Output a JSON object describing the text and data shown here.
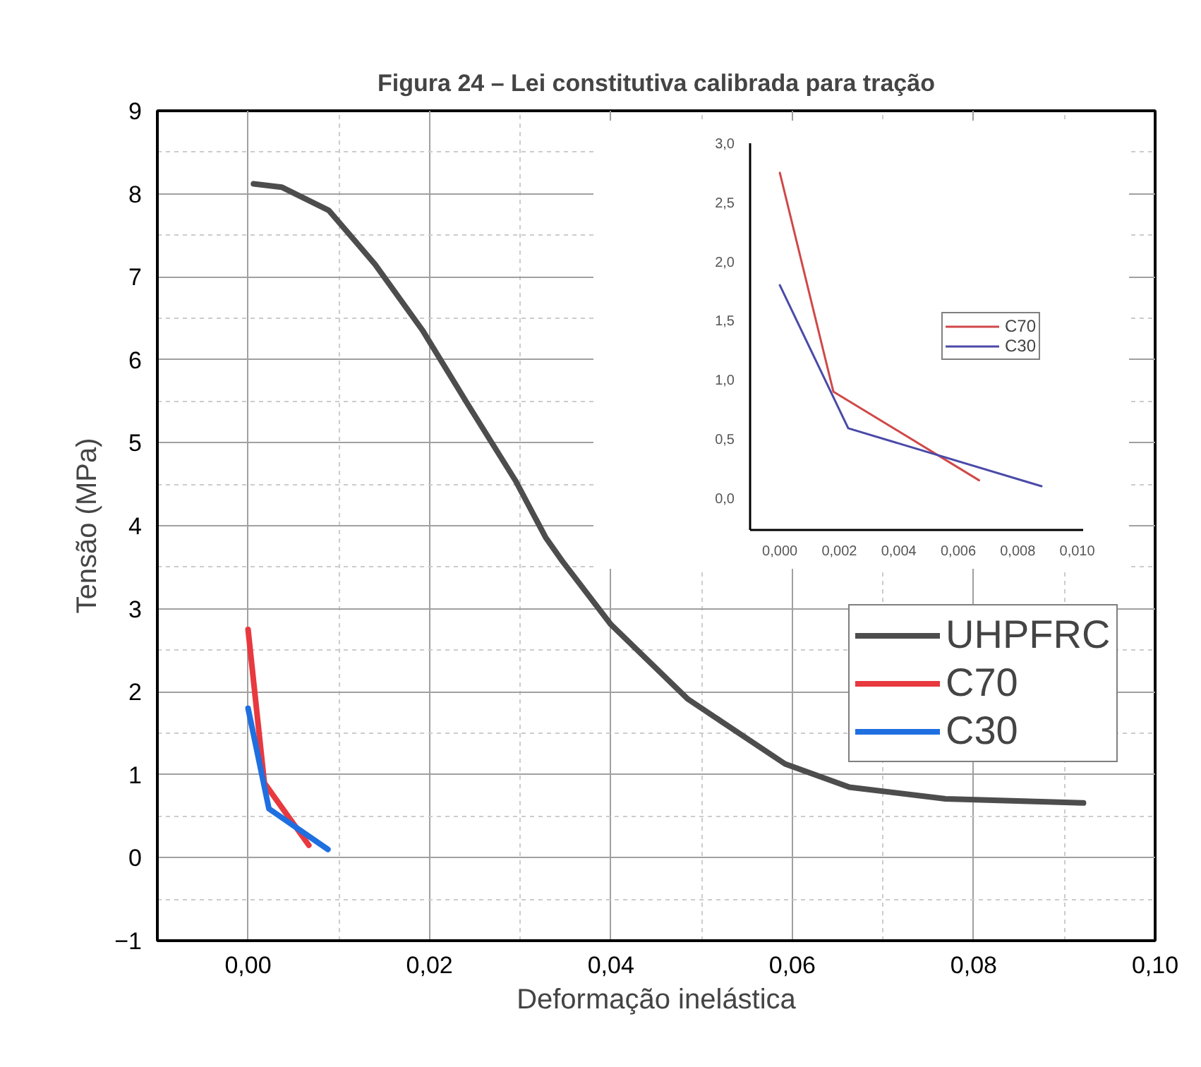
{
  "chart_data": [
    {
      "type": "line",
      "title": "Figura 24 – Lei constitutiva calibrada para tração",
      "xlabel": "Deformação inelástica",
      "ylabel": "Tensão (MPa)",
      "xlim": [
        -0.01,
        0.1
      ],
      "ylim": [
        -1,
        9
      ],
      "xticks": [
        {
          "value": 0,
          "label": "0,00"
        },
        {
          "value": 0.02,
          "label": "0,02"
        },
        {
          "value": 0.04,
          "label": "0,04"
        },
        {
          "value": 0.06,
          "label": "0,06"
        },
        {
          "value": 0.08,
          "label": "0,08"
        },
        {
          "value": 0.1,
          "label": "0,10"
        }
      ],
      "yticks": [
        -1,
        0,
        1,
        2,
        3,
        4,
        5,
        6,
        7,
        8,
        9
      ],
      "grid": true,
      "legend": "right",
      "line_style": "solid",
      "marker": "none",
      "series": [
        {
          "name": "UHPFRC",
          "color": "#4d4d4d",
          "x": [
            0.0006,
            0.0037,
            0.0089,
            0.014,
            0.0192,
            0.0243,
            0.0295,
            0.0328,
            0.0346,
            0.04,
            0.0485,
            0.0592,
            0.0663,
            0.0769,
            0.0921
          ],
          "values": [
            8.12,
            8.08,
            7.8,
            7.15,
            6.36,
            5.45,
            4.54,
            3.86,
            3.58,
            2.81,
            1.91,
            1.13,
            0.85,
            0.71,
            0.66
          ]
        },
        {
          "name": "C70",
          "color": "#e8393f",
          "x": [
            0,
            0.0018,
            0.0067
          ],
          "values": [
            2.75,
            0.9,
            0.15
          ]
        },
        {
          "name": "C30",
          "color": "#1f6fe0",
          "x": [
            0,
            0.0023,
            0.0088
          ],
          "values": [
            1.8,
            0.59,
            0.1
          ]
        }
      ]
    },
    {
      "type": "line",
      "xlim": [
        -0.001,
        0.0102
      ],
      "ylim": [
        -0.27,
        3.0
      ],
      "xticks": [
        {
          "value": 0,
          "label": "0,000"
        },
        {
          "value": 0.002,
          "label": "0,002"
        },
        {
          "value": 0.004,
          "label": "0,004"
        },
        {
          "value": 0.006,
          "label": "0,006"
        },
        {
          "value": 0.008,
          "label": "0,008"
        },
        {
          "value": 0.01,
          "label": "0,010"
        }
      ],
      "yticks": [
        {
          "value": 0,
          "label": "0,0"
        },
        {
          "value": 0.5,
          "label": "0,5"
        },
        {
          "value": 1,
          "label": "1,0"
        },
        {
          "value": 1.5,
          "label": "1,5"
        },
        {
          "value": 2,
          "label": "2,0"
        },
        {
          "value": 2.5,
          "label": "2,5"
        },
        {
          "value": 3,
          "label": "3,0"
        }
      ],
      "legend": "right",
      "line_style": "solid",
      "marker": "none",
      "series": [
        {
          "name": "C70",
          "color": "#d04848",
          "x": [
            0,
            0.0018,
            0.0067
          ],
          "values": [
            2.75,
            0.9,
            0.15
          ]
        },
        {
          "name": "C30",
          "color": "#4a4aa8",
          "x": [
            0,
            0.0023,
            0.0088
          ],
          "values": [
            1.8,
            0.59,
            0.1
          ]
        }
      ]
    }
  ]
}
